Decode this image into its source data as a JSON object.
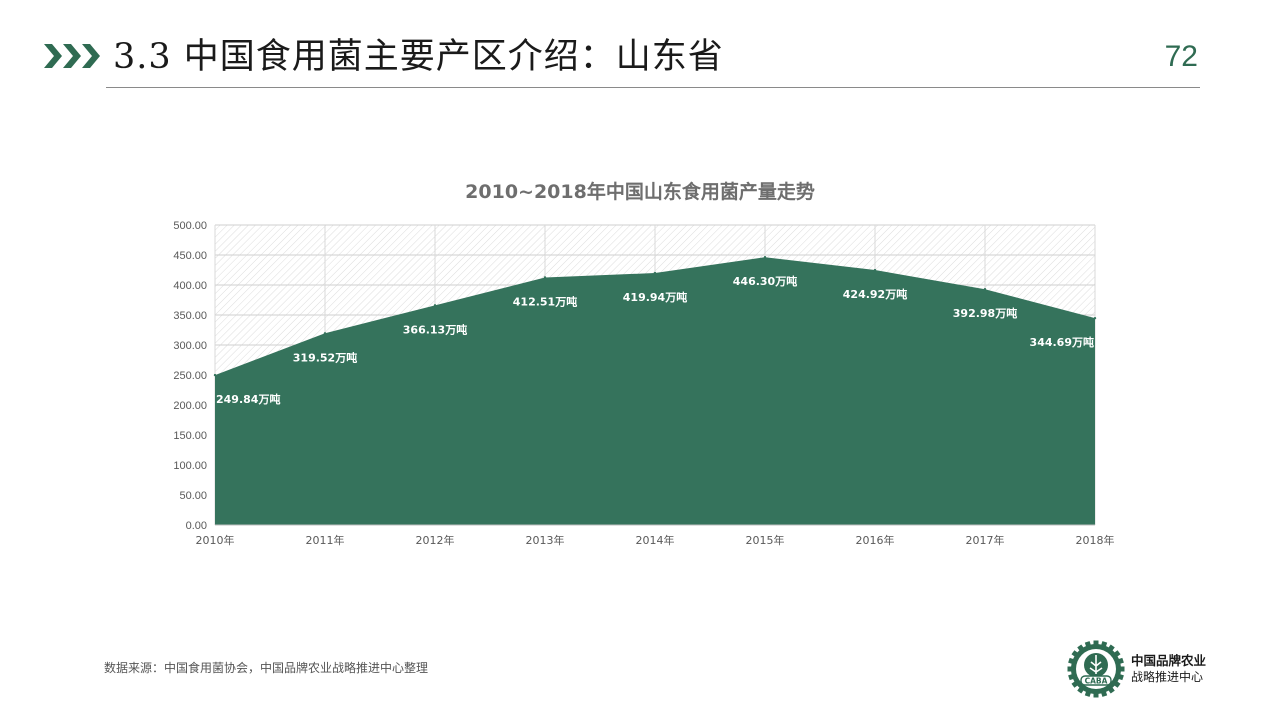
{
  "header": {
    "title": "3.3 中国食用菌主要产区介绍：山东省",
    "page_number": "72",
    "accent_color": "#2f6b52"
  },
  "chart_data": {
    "type": "area",
    "title": "2010~2018年中国山东食用菌产量走势",
    "categories": [
      "2010年",
      "2011年",
      "2012年",
      "2013年",
      "2014年",
      "2015年",
      "2016年",
      "2017年",
      "2018年"
    ],
    "values": [
      249.84,
      319.52,
      366.13,
      412.51,
      419.94,
      446.3,
      424.92,
      392.98,
      344.69
    ],
    "data_labels": [
      "249.84万吨",
      "319.52万吨",
      "366.13万吨",
      "412.51万吨",
      "419.94万吨",
      "446.30万吨",
      "424.92万吨",
      "392.98万吨",
      "344.69万吨"
    ],
    "yticks": [
      "0.00",
      "50.00",
      "100.00",
      "150.00",
      "200.00",
      "250.00",
      "300.00",
      "350.00",
      "400.00",
      "450.00",
      "500.00"
    ],
    "ylim": [
      0,
      500
    ],
    "grid": true,
    "fill_color": "#35735c",
    "background_pattern": "diagonal-hatch"
  },
  "footer": {
    "source": "数据来源：中国食用菌协会，中国品牌农业战略推进中心整理",
    "logo_text_line1": "中国品牌农业",
    "logo_text_line2": "战略推进中心",
    "logo_badge": "CABA"
  }
}
